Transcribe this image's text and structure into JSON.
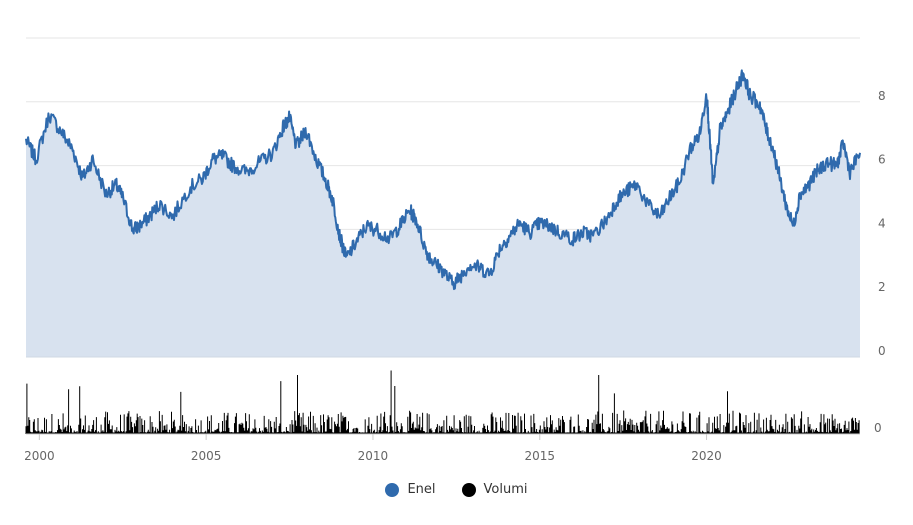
{
  "chart_data": {
    "type": "line",
    "title": "",
    "xlabel": "",
    "ylabel": "",
    "x_range": [
      1999.6,
      2024.6
    ],
    "x_ticks": [
      "2000",
      "2005",
      "2010",
      "2015",
      "2020"
    ],
    "x_tick_values": [
      2000,
      2005,
      2010,
      2015,
      2020
    ],
    "ylim": [
      0,
      10
    ],
    "y_ticks": [
      "0",
      "2",
      "4",
      "6",
      "8"
    ],
    "y_tick_values": [
      0,
      2,
      4,
      6,
      8
    ],
    "grid": true,
    "legend_position": "bottom-center",
    "series": [
      {
        "name": "Enel",
        "color": "#2f6aad",
        "fill": "#d8e2ef",
        "x": [
          1999.6,
          1999.9,
          2000.3,
          2000.7,
          2001.0,
          2001.3,
          2001.6,
          2002.0,
          2002.3,
          2002.5,
          2002.8,
          2003.0,
          2003.3,
          2003.6,
          2004.0,
          2004.5,
          2004.9,
          2005.2,
          2005.5,
          2005.8,
          2006.2,
          2006.6,
          2007.0,
          2007.3,
          2007.5,
          2007.7,
          2008.0,
          2008.3,
          2008.6,
          2008.8,
          2009.0,
          2009.2,
          2009.5,
          2009.8,
          2010.1,
          2010.5,
          2010.8,
          2011.1,
          2011.3,
          2011.6,
          2011.8,
          2012.1,
          2012.4,
          2012.6,
          2012.9,
          2013.2,
          2013.5,
          2013.8,
          2014.1,
          2014.4,
          2014.7,
          2015.0,
          2015.3,
          2015.6,
          2016.0,
          2016.3,
          2016.6,
          2017.0,
          2017.3,
          2017.6,
          2017.9,
          2018.3,
          2018.6,
          2018.9,
          2019.2,
          2019.5,
          2019.8,
          2020.0,
          2020.1,
          2020.2,
          2020.4,
          2020.6,
          2020.9,
          2021.1,
          2021.3,
          2021.6,
          2021.8,
          2022.0,
          2022.2,
          2022.4,
          2022.6,
          2022.8,
          2023.0,
          2023.3,
          2023.6,
          2023.9,
          2024.1,
          2024.3,
          2024.6
        ],
        "y": [
          6.8,
          6.2,
          7.6,
          7.0,
          6.5,
          5.6,
          6.2,
          5.1,
          5.4,
          5.0,
          4.0,
          4.1,
          4.4,
          4.8,
          4.4,
          5.3,
          5.6,
          6.2,
          6.3,
          6.0,
          5.8,
          6.1,
          6.4,
          7.2,
          7.5,
          6.6,
          7.1,
          6.2,
          5.5,
          4.9,
          3.8,
          3.1,
          3.6,
          4.1,
          4.0,
          3.7,
          4.1,
          4.6,
          4.3,
          3.3,
          3.0,
          2.7,
          2.3,
          2.5,
          2.9,
          2.8,
          2.6,
          3.4,
          3.8,
          4.2,
          3.9,
          4.2,
          4.1,
          3.9,
          3.7,
          3.9,
          3.8,
          4.3,
          4.9,
          5.2,
          5.4,
          4.7,
          4.4,
          5.0,
          5.5,
          6.5,
          7.0,
          8.3,
          6.8,
          5.3,
          7.1,
          7.6,
          8.4,
          8.9,
          8.2,
          7.9,
          7.1,
          6.5,
          5.6,
          4.7,
          4.1,
          5.1,
          5.3,
          5.8,
          6.1,
          6.0,
          6.7,
          5.8,
          6.4
        ]
      },
      {
        "name": "Volumi",
        "color": "#000000",
        "axis_ticks": [
          "0"
        ]
      }
    ]
  },
  "legend": [
    {
      "label": "Enel",
      "color": "#2f6aad"
    },
    {
      "label": "Volumi",
      "color": "#000000"
    }
  ]
}
